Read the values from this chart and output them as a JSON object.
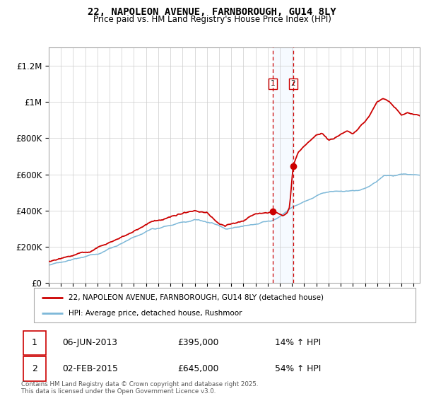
{
  "title_line1": "22, NAPOLEON AVENUE, FARNBOROUGH, GU14 8LY",
  "title_line2": "Price paid vs. HM Land Registry's House Price Index (HPI)",
  "ylim": [
    0,
    1300000
  ],
  "yticks": [
    0,
    200000,
    400000,
    600000,
    800000,
    1000000,
    1200000
  ],
  "ytick_labels": [
    "£0",
    "£200K",
    "£400K",
    "£600K",
    "£800K",
    "£1M",
    "£1.2M"
  ],
  "hpi_color": "#7db8d8",
  "sale_color": "#cc0000",
  "marker_color": "#cc0000",
  "shade_color": "#ddeeff",
  "dashed_color": "#cc0000",
  "grid_color": "#cccccc",
  "bg_color": "#ffffff",
  "sale1_date": 2013.43,
  "sale1_price": 395000,
  "sale2_date": 2015.09,
  "sale2_price": 645000,
  "legend_label1": "22, NAPOLEON AVENUE, FARNBOROUGH, GU14 8LY (detached house)",
  "legend_label2": "HPI: Average price, detached house, Rushmoor",
  "annotation1_date": "06-JUN-2013",
  "annotation1_price": "£395,000",
  "annotation1_hpi": "14% ↑ HPI",
  "annotation2_date": "02-FEB-2015",
  "annotation2_price": "£645,000",
  "annotation2_hpi": "54% ↑ HPI",
  "footer": "Contains HM Land Registry data © Crown copyright and database right 2025.\nThis data is licensed under the Open Government Licence v3.0.",
  "xmin": 1995,
  "xmax": 2025.5
}
